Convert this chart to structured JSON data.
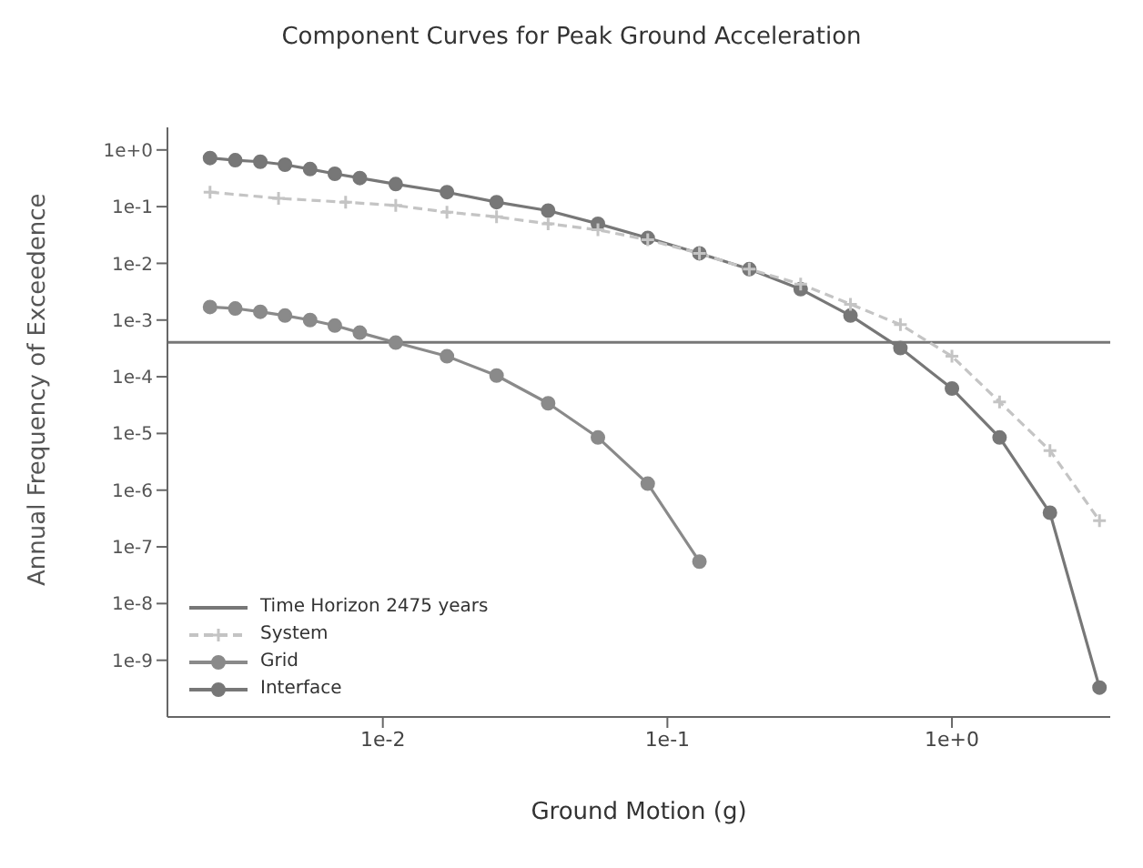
{
  "chart_data": {
    "type": "line",
    "title": "Component Curves for Peak Ground Acceleration",
    "xlabel": "Ground Motion (g)",
    "ylabel": "Annual Frequency of Exceedence",
    "log": "xy",
    "grid": false,
    "legend": "bottom left",
    "xlim": [
      0.00175,
      3.6
    ],
    "xticks": [
      {
        "value": 0.01,
        "label": "1e-2"
      },
      {
        "value": 0.1,
        "label": "1e-1"
      },
      {
        "value": 1,
        "label": "1e+0"
      }
    ],
    "ylim": [
      1e-10,
      2.5
    ],
    "yticks": [
      {
        "value": 1,
        "label": "1e+0"
      },
      {
        "value": 0.1,
        "label": "1e-1"
      },
      {
        "value": 0.01,
        "label": "1e-2"
      },
      {
        "value": 0.001,
        "label": "1e-3"
      },
      {
        "value": 0.0001,
        "label": "1e-4"
      },
      {
        "value": 1e-05,
        "label": "1e-5"
      },
      {
        "value": 1e-06,
        "label": "1e-6"
      },
      {
        "value": 1e-07,
        "label": "1e-7"
      },
      {
        "value": 1e-08,
        "label": "1e-8"
      },
      {
        "value": 1e-09,
        "label": "1e-9"
      }
    ],
    "ref_lines": [
      {
        "axis": "y",
        "value": 0.000404,
        "label": "Time Horizon 2475 years",
        "color": "#777777",
        "line_style": "solid"
      }
    ],
    "series": [
      {
        "name": "System",
        "color": "#c4c4c4",
        "marker": "cross",
        "line_style": "dashed",
        "x": [
          0.00247,
          0.0043,
          0.0074,
          0.0111,
          0.0168,
          0.0251,
          0.0381,
          0.057,
          0.0853,
          0.1296,
          0.194,
          0.294,
          0.44,
          0.659,
          1.0,
          1.47,
          2.21,
          3.3
        ],
        "values": [
          0.18,
          0.14,
          0.12,
          0.105,
          0.08,
          0.066,
          0.05,
          0.039,
          0.026,
          0.015,
          0.0079,
          0.0043,
          0.0019,
          0.00083,
          0.00023,
          3.6e-05,
          5e-06,
          2.9e-07
        ]
      },
      {
        "name": "Grid",
        "color": "#8a8a8a",
        "marker": "circle",
        "line_style": "solid",
        "x": [
          0.00247,
          0.00303,
          0.00371,
          0.00453,
          0.00555,
          0.00678,
          0.0083,
          0.0111,
          0.0168,
          0.0251,
          0.0381,
          0.057,
          0.0853,
          0.1296
        ],
        "values": [
          0.0017,
          0.0016,
          0.0014,
          0.0012,
          0.001,
          0.0008,
          0.0006,
          0.0004,
          0.00023,
          0.000105,
          3.4e-05,
          8.5e-06,
          1.3e-06,
          5.5e-08
        ]
      },
      {
        "name": "Interface",
        "color": "#777777",
        "marker": "circle",
        "line_style": "solid",
        "x": [
          0.00247,
          0.00303,
          0.00371,
          0.00453,
          0.00555,
          0.00678,
          0.0083,
          0.0111,
          0.0168,
          0.0251,
          0.0381,
          0.057,
          0.0853,
          0.1296,
          0.194,
          0.294,
          0.44,
          0.659,
          1.0,
          1.47,
          2.21,
          3.3
        ],
        "values": [
          0.72,
          0.66,
          0.62,
          0.55,
          0.46,
          0.38,
          0.32,
          0.25,
          0.18,
          0.12,
          0.085,
          0.05,
          0.028,
          0.015,
          0.0079,
          0.0035,
          0.0012,
          0.00032,
          6.2e-05,
          8.5e-06,
          4e-07,
          3.3e-10
        ]
      }
    ]
  }
}
